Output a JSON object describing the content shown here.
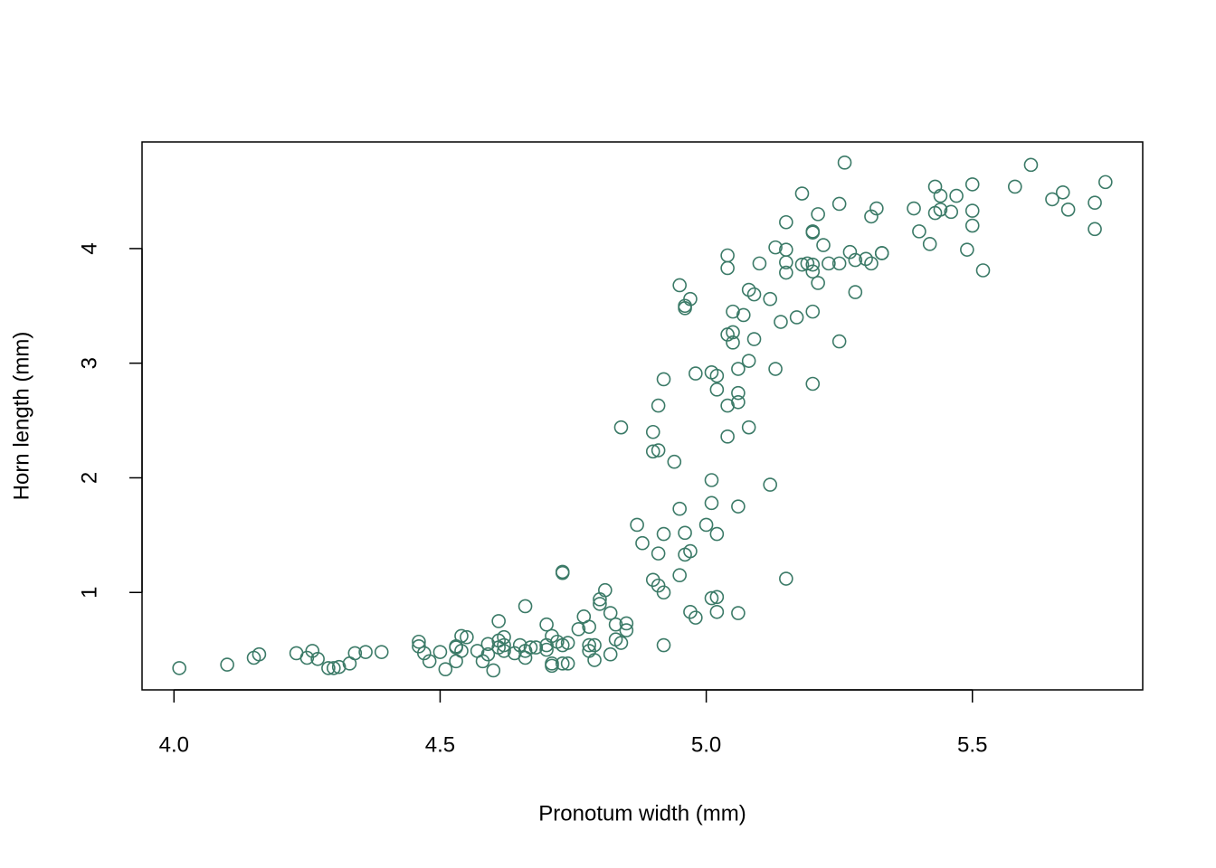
{
  "chart_data": {
    "type": "scatter",
    "x_label": "Pronotum width (mm)",
    "y_label": "Horn length (mm)",
    "color": "#3b7a67",
    "xlim": [
      3.94,
      5.82
    ],
    "ylim": [
      0.15,
      4.93
    ],
    "xticks": [
      {
        "value": 4,
        "label": "4.0"
      },
      4.5,
      {
        "value": 5,
        "label": "5.0"
      },
      5.5
    ],
    "yticks": [
      1,
      2,
      3,
      4
    ],
    "x": [
      4.01,
      4.1,
      4.15,
      4.16,
      4.23,
      4.25,
      4.26,
      4.27,
      4.29,
      4.3,
      4.31,
      4.33,
      4.34,
      4.36,
      4.39,
      4.46,
      4.46,
      4.47,
      4.48,
      4.5,
      4.51,
      4.53,
      4.53,
      4.53,
      4.54,
      4.54,
      4.55,
      4.57,
      4.58,
      4.59,
      4.59,
      4.6,
      4.61,
      4.61,
      4.61,
      4.62,
      4.62,
      4.62,
      4.64,
      4.65,
      4.66,
      4.66,
      4.66,
      4.67,
      4.68,
      4.7,
      4.7,
      4.7,
      4.71,
      4.71,
      4.71,
      4.72,
      4.73,
      4.73,
      4.74,
      4.74,
      4.76,
      4.77,
      4.78,
      4.78,
      4.78,
      4.79,
      4.79,
      4.8,
      4.8,
      4.81,
      4.82,
      4.82,
      4.83,
      4.83,
      4.84,
      4.84,
      4.85,
      4.85,
      4.73,
      4.73,
      4.87,
      4.88,
      4.9,
      4.9,
      4.9,
      4.91,
      4.91,
      4.91,
      4.91,
      4.92,
      4.92,
      4.92,
      4.92,
      4.94,
      4.95,
      4.95,
      4.95,
      4.96,
      4.96,
      4.96,
      4.96,
      4.97,
      4.97,
      4.97,
      4.98,
      4.98,
      5.0,
      5.01,
      5.01,
      5.01,
      5.01,
      5.02,
      5.02,
      5.02,
      5.02,
      5.02,
      5.04,
      5.04,
      5.04,
      5.04,
      5.04,
      5.05,
      5.05,
      5.05,
      5.06,
      5.06,
      5.06,
      5.06,
      5.06,
      5.07,
      5.08,
      5.08,
      5.08,
      5.09,
      5.09,
      5.1,
      5.12,
      5.12,
      5.13,
      5.13,
      5.14,
      5.15,
      5.15,
      5.15,
      5.15,
      5.15,
      5.17,
      5.18,
      5.18,
      5.19,
      5.2,
      5.2,
      5.2,
      5.2,
      5.2,
      5.2,
      5.21,
      5.21,
      5.22,
      5.23,
      5.25,
      5.25,
      5.25,
      5.26,
      5.27,
      5.28,
      5.28,
      5.3,
      5.31,
      5.31,
      5.32,
      5.33,
      5.33,
      5.39,
      5.4,
      5.42,
      5.43,
      5.43,
      5.44,
      5.44,
      5.46,
      5.47,
      5.49,
      5.5,
      5.5,
      5.5,
      5.52,
      5.58,
      5.61,
      5.65,
      5.67,
      5.68,
      5.73,
      5.73,
      5.75
    ],
    "values": [
      0.34,
      0.37,
      0.43,
      0.46,
      0.47,
      0.43,
      0.49,
      0.42,
      0.34,
      0.34,
      0.35,
      0.38,
      0.47,
      0.48,
      0.48,
      0.57,
      0.53,
      0.47,
      0.4,
      0.48,
      0.33,
      0.4,
      0.52,
      0.53,
      0.62,
      0.49,
      0.61,
      0.49,
      0.4,
      0.46,
      0.55,
      0.32,
      0.52,
      0.75,
      0.58,
      0.49,
      0.61,
      0.54,
      0.47,
      0.54,
      0.43,
      0.88,
      0.49,
      0.52,
      0.52,
      0.72,
      0.5,
      0.54,
      0.38,
      0.36,
      0.62,
      0.57,
      0.38,
      0.54,
      0.56,
      0.38,
      0.68,
      0.79,
      0.49,
      0.54,
      0.7,
      0.41,
      0.54,
      0.94,
      0.9,
      1.02,
      0.82,
      0.46,
      0.72,
      0.59,
      0.56,
      2.44,
      0.73,
      0.67,
      1.18,
      1.17,
      1.59,
      1.43,
      1.11,
      2.4,
      2.23,
      1.34,
      1.06,
      2.63,
      2.24,
      1.51,
      1.0,
      2.86,
      0.54,
      2.14,
      1.73,
      1.15,
      3.68,
      3.5,
      3.48,
      1.52,
      1.33,
      0.83,
      1.36,
      3.56,
      0.78,
      2.91,
      1.59,
      0.95,
      2.92,
      1.98,
      1.78,
      2.89,
      2.77,
      0.96,
      1.51,
      0.83,
      3.25,
      2.36,
      3.94,
      3.83,
      2.63,
      3.45,
      3.27,
      3.18,
      2.66,
      2.74,
      2.95,
      0.82,
      1.75,
      3.42,
      3.02,
      3.64,
      2.44,
      3.6,
      3.21,
      3.87,
      3.56,
      1.94,
      2.95,
      4.01,
      3.36,
      1.12,
      4.23,
      3.99,
      3.88,
      3.79,
      3.4,
      4.48,
      3.86,
      3.87,
      4.14,
      4.15,
      3.8,
      3.45,
      2.82,
      3.86,
      4.3,
      3.7,
      4.03,
      3.87,
      4.39,
      3.19,
      3.87,
      4.75,
      3.97,
      3.9,
      3.62,
      3.91,
      4.28,
      3.87,
      4.35,
      3.96,
      3.96,
      4.35,
      4.15,
      4.04,
      4.54,
      4.31,
      4.46,
      4.34,
      4.32,
      4.46,
      3.99,
      4.56,
      4.33,
      4.2,
      3.81,
      4.54,
      4.73,
      4.43,
      4.49,
      4.34,
      4.4,
      4.17,
      4.58
    ]
  }
}
